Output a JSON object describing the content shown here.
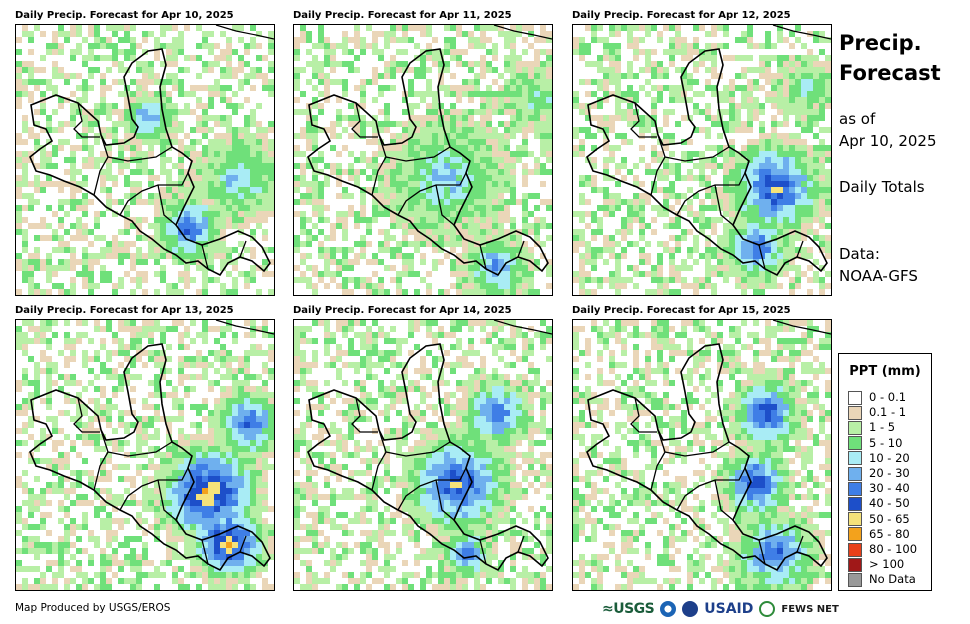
{
  "panels": [
    {
      "title": "Daily Precip. Forecast for Apr 10, 2025",
      "variant": 0
    },
    {
      "title": "Daily Precip. Forecast for Apr 11, 2025",
      "variant": 1
    },
    {
      "title": "Daily Precip. Forecast for Apr 12, 2025",
      "variant": 2
    },
    {
      "title": "Daily Precip. Forecast for Apr 13, 2025",
      "variant": 3
    },
    {
      "title": "Daily Precip. Forecast for Apr 14, 2025",
      "variant": 4
    },
    {
      "title": "Daily Precip. Forecast for Apr 15, 2025",
      "variant": 5
    }
  ],
  "side": {
    "title_line1": "Precip.",
    "title_line2": "Forecast",
    "asof_line1": "as of",
    "asof_line2": "Apr 10, 2025",
    "totals": "Daily Totals",
    "data_line1": "Data:",
    "data_line2": "NOAA-GFS"
  },
  "legend": {
    "title": "PPT (mm)",
    "items": [
      {
        "label": "0 - 0.1",
        "color": "#ffffff"
      },
      {
        "label": "0.1 - 1",
        "color": "#ead6b8"
      },
      {
        "label": "1 - 5",
        "color": "#b8efa6"
      },
      {
        "label": "5 - 10",
        "color": "#6fe07a"
      },
      {
        "label": "10 - 20",
        "color": "#a9ecf5"
      },
      {
        "label": "20 - 30",
        "color": "#6fb0ee"
      },
      {
        "label": "30 - 40",
        "color": "#3f7ee6"
      },
      {
        "label": "40 - 50",
        "color": "#1d4fc9"
      },
      {
        "label": "50 - 65",
        "color": "#f5e27a"
      },
      {
        "label": "65 - 80",
        "color": "#f3a21c"
      },
      {
        "label": "80 - 100",
        "color": "#e8401a"
      },
      {
        "label": "> 100",
        "color": "#a01818"
      },
      {
        "label": "No Data",
        "color": "#999999"
      }
    ]
  },
  "footer": {
    "credit": "Map Produced by USGS/EROS",
    "logo_usgs": "≈USGS",
    "logo_usaid": "USAID",
    "logo_fews": "FEWS NET"
  }
}
